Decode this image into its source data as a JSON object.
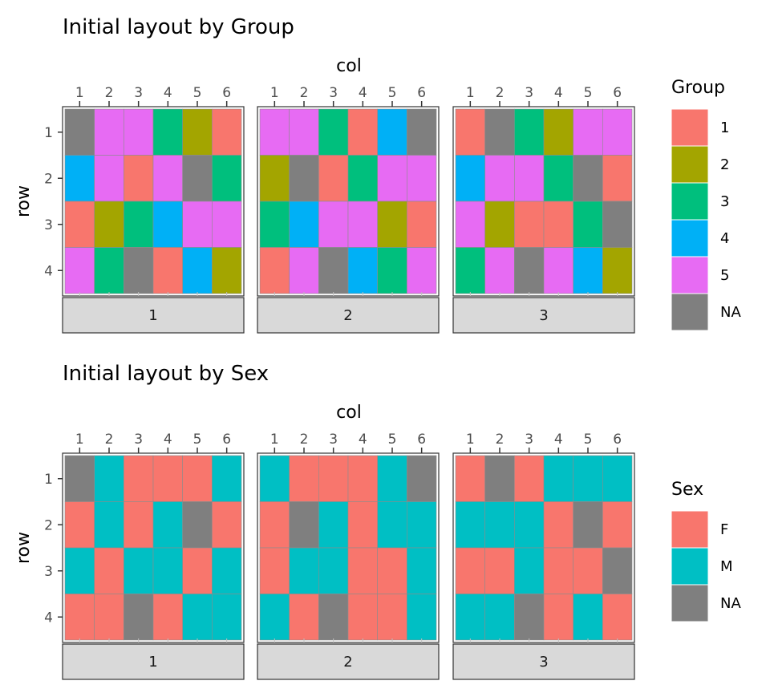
{
  "chart_data": [
    {
      "type": "heatmap",
      "title": "Initial layout by Group",
      "xlabel": "col",
      "ylabel": "row",
      "x": [
        "1",
        "2",
        "3",
        "4",
        "5",
        "6"
      ],
      "y": [
        "1",
        "2",
        "3",
        "4"
      ],
      "facets": [
        "1",
        "2",
        "3"
      ],
      "legend": {
        "title": "Group",
        "position": "right",
        "items": [
          {
            "label": "1",
            "color": "#F8766D"
          },
          {
            "label": "2",
            "color": "#A3A500"
          },
          {
            "label": "3",
            "color": "#00BF7D"
          },
          {
            "label": "4",
            "color": "#00B0F6"
          },
          {
            "label": "5",
            "color": "#E76BF3"
          },
          {
            "label": "NA",
            "color": "#7F7F7F"
          }
        ]
      },
      "values": [
        [
          [
            "NA",
            "5",
            "5",
            "3",
            "2",
            "1"
          ],
          [
            "4",
            "5",
            "1",
            "5",
            "NA",
            "3"
          ],
          [
            "1",
            "2",
            "3",
            "4",
            "5",
            "5"
          ],
          [
            "5",
            "3",
            "NA",
            "1",
            "4",
            "2"
          ]
        ],
        [
          [
            "5",
            "5",
            "3",
            "1",
            "4",
            "NA"
          ],
          [
            "2",
            "NA",
            "1",
            "3",
            "5",
            "5"
          ],
          [
            "3",
            "4",
            "5",
            "5",
            "2",
            "1"
          ],
          [
            "1",
            "5",
            "NA",
            "4",
            "3",
            "5"
          ]
        ],
        [
          [
            "1",
            "NA",
            "3",
            "2",
            "5",
            "5"
          ],
          [
            "4",
            "5",
            "5",
            "3",
            "NA",
            "1"
          ],
          [
            "5",
            "2",
            "1",
            "1",
            "3",
            "NA"
          ],
          [
            "3",
            "5",
            "NA",
            "5",
            "4",
            "2"
          ]
        ]
      ]
    },
    {
      "type": "heatmap",
      "title": "Initial layout by Sex",
      "xlabel": "col",
      "ylabel": "row",
      "x": [
        "1",
        "2",
        "3",
        "4",
        "5",
        "6"
      ],
      "y": [
        "1",
        "2",
        "3",
        "4"
      ],
      "facets": [
        "1",
        "2",
        "3"
      ],
      "legend": {
        "title": "Sex",
        "position": "right",
        "items": [
          {
            "label": "F",
            "color": "#F8766D"
          },
          {
            "label": "M",
            "color": "#00BFC4"
          },
          {
            "label": "NA",
            "color": "#7F7F7F"
          }
        ]
      },
      "values": [
        [
          [
            "NA",
            "M",
            "F",
            "F",
            "F",
            "M"
          ],
          [
            "F",
            "M",
            "F",
            "M",
            "NA",
            "F"
          ],
          [
            "M",
            "F",
            "M",
            "M",
            "F",
            "M"
          ],
          [
            "F",
            "F",
            "NA",
            "F",
            "M",
            "M"
          ]
        ],
        [
          [
            "M",
            "F",
            "F",
            "F",
            "M",
            "NA"
          ],
          [
            "F",
            "NA",
            "M",
            "F",
            "M",
            "M"
          ],
          [
            "F",
            "M",
            "M",
            "F",
            "F",
            "M"
          ],
          [
            "M",
            "F",
            "NA",
            "F",
            "F",
            "M"
          ]
        ],
        [
          [
            "F",
            "NA",
            "F",
            "M",
            "M",
            "M"
          ],
          [
            "M",
            "M",
            "M",
            "F",
            "NA",
            "F"
          ],
          [
            "F",
            "F",
            "M",
            "F",
            "F",
            "NA"
          ],
          [
            "M",
            "M",
            "NA",
            "F",
            "M",
            "F"
          ]
        ]
      ]
    }
  ]
}
